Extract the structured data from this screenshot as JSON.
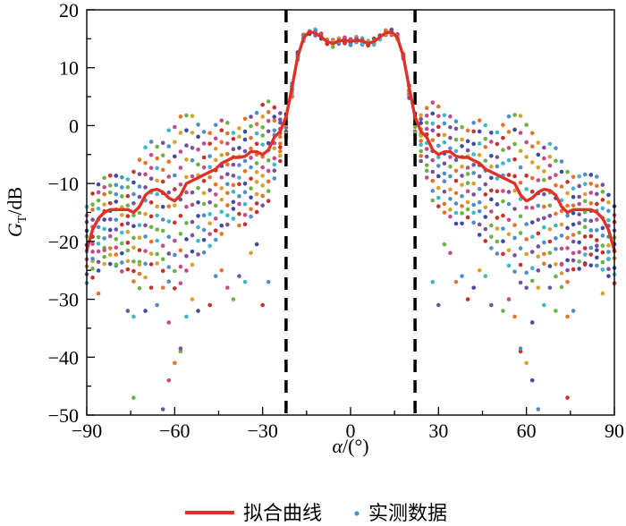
{
  "chart_data": {
    "type": "scatter",
    "xlabel_var": "α",
    "xlabel_unit": "/(°)",
    "ylabel_var": "G",
    "ylabel_sub": "T",
    "ylabel_unit": "/dB",
    "xlim": [
      -90,
      90
    ],
    "ylim": [
      -50,
      20
    ],
    "x_ticks": [
      -90,
      -60,
      -30,
      0,
      30,
      60,
      90
    ],
    "x_tick_labels": [
      "−90",
      "−60",
      "−30",
      "0",
      "30",
      "60",
      "90"
    ],
    "y_ticks": [
      -50,
      -40,
      -30,
      -20,
      -10,
      0,
      10,
      20
    ],
    "y_tick_labels": [
      "−50",
      "−40",
      "−30",
      "−20",
      "−10",
      "0",
      "10",
      "20"
    ],
    "vlines": [
      -22,
      22
    ],
    "legend_position": "bottom-center",
    "series": [
      {
        "name": "拟合曲线",
        "kind": "line",
        "color": "#e03127",
        "x": [
          -90,
          -88,
          -86,
          -84,
          -82,
          -80,
          -78,
          -76,
          -74,
          -72,
          -70,
          -68,
          -66,
          -64,
          -62,
          -60,
          -58,
          -56,
          -54,
          -52,
          -50,
          -48,
          -46,
          -44,
          -42,
          -40,
          -38,
          -36,
          -34,
          -32,
          -30,
          -28,
          -26,
          -24,
          -22,
          -20,
          -18,
          -16,
          -14,
          -12,
          -10,
          -8,
          -6,
          -4,
          -2,
          0,
          2,
          4,
          6,
          8,
          10,
          12,
          14,
          16,
          18,
          20,
          22,
          24,
          26,
          28,
          30,
          32,
          34,
          36,
          38,
          40,
          42,
          44,
          46,
          48,
          50,
          52,
          54,
          56,
          58,
          60,
          62,
          64,
          66,
          68,
          70,
          72,
          74,
          76,
          78,
          80,
          82,
          84,
          86,
          88,
          90
        ],
        "y": [
          -21.5,
          -18,
          -16,
          -15,
          -14.5,
          -14.5,
          -14.5,
          -14.5,
          -15,
          -14,
          -12,
          -11.2,
          -11,
          -11.5,
          -12.5,
          -13,
          -12,
          -10,
          -9.5,
          -9,
          -8.5,
          -8,
          -7.5,
          -6.5,
          -6,
          -5.5,
          -5.5,
          -5.3,
          -4.5,
          -4.5,
          -5,
          -4.2,
          -2,
          -1,
          1.5,
          6.5,
          12,
          15.2,
          16.2,
          16,
          15.3,
          14.5,
          14.2,
          14.6,
          14.8,
          14.5,
          14.8,
          14.6,
          14.2,
          14.5,
          15.3,
          16,
          16.2,
          15.2,
          12,
          6.5,
          1.5,
          -1,
          -2,
          -4.2,
          -5,
          -4.5,
          -4.5,
          -5.3,
          -5.5,
          -5.5,
          -6,
          -6.5,
          -7.5,
          -8,
          -8.5,
          -9,
          -9.5,
          -10,
          -12,
          -13,
          -12.5,
          -11.5,
          -11,
          -11.2,
          -12,
          -14,
          -15,
          -14.5,
          -14.5,
          -14.5,
          -14.5,
          -15,
          -16,
          -18,
          -21.5
        ]
      },
      {
        "name": "实测数据",
        "kind": "scatter",
        "colors": [
          "#4e8fc9",
          "#e6732a",
          "#c54a8c",
          "#6bb344",
          "#7a4fa0",
          "#3fb7c9",
          "#d9a12b",
          "#3e4aa3",
          "#c9302c"
        ],
        "x": [
          -90,
          -88,
          -86,
          -84,
          -82,
          -80,
          -78,
          -76,
          -74,
          -72,
          -70,
          -68,
          -66,
          -64,
          -62,
          -60,
          -58,
          -56,
          -54,
          -52,
          -50,
          -48,
          -46,
          -44,
          -42,
          -40,
          -38,
          -36,
          -34,
          -32,
          -30,
          -28,
          -26,
          -24,
          -22,
          -20,
          -18,
          -16,
          -14,
          -12,
          -10,
          -8,
          -6,
          -4,
          -2,
          0,
          2,
          4,
          6,
          8,
          10,
          12,
          14,
          16,
          18,
          20,
          22,
          24,
          26,
          28,
          30,
          32,
          34,
          36,
          38,
          40,
          42,
          44,
          46,
          48,
          50,
          52,
          54,
          56,
          58,
          60,
          62,
          64,
          66,
          68,
          70,
          72,
          74,
          76,
          78,
          80,
          82,
          84,
          86,
          88,
          90
        ],
        "y_upper": [
          -14,
          -12,
          -10,
          -9,
          -8.5,
          -8.5,
          -9,
          -9,
          -8,
          -6,
          -4,
          -3,
          -3.5,
          -3,
          -1,
          0,
          1.5,
          2,
          1.5,
          0,
          -1,
          -1,
          0,
          1,
          0.5,
          -1,
          -0.5,
          1,
          1.5,
          2,
          3.5,
          4,
          3,
          2,
          2,
          7,
          12.5,
          15.8,
          16.5,
          16.4,
          15.7,
          14.9,
          14.5,
          14.9,
          15.1,
          14.8,
          15.1,
          14.9,
          14.5,
          14.9,
          15.7,
          16.4,
          16.5,
          15.8,
          12.5,
          7,
          2,
          2,
          3,
          4,
          3.5,
          2,
          1.5,
          1,
          -0.5,
          -1,
          0.5,
          1,
          0,
          -1,
          -1,
          0,
          1.5,
          2,
          1.5,
          0,
          -1,
          -3,
          -3.5,
          -3,
          -4,
          -6,
          -8,
          -9,
          -9,
          -8.5,
          -8.5,
          -9,
          -10,
          -12,
          -14
        ],
        "y_lower": [
          -27,
          -26,
          -25,
          -24,
          -24,
          -24,
          -25,
          -25,
          -27,
          -28,
          -26,
          -24,
          -24,
          -25,
          -27,
          -28,
          -27,
          -25,
          -24,
          -22,
          -22,
          -21,
          -20,
          -19,
          -17,
          -16,
          -17,
          -17,
          -16,
          -15,
          -14,
          -13,
          -9,
          -6,
          -2,
          5,
          11.5,
          14.8,
          15.8,
          15.6,
          14.9,
          14.1,
          13.8,
          14.2,
          14.4,
          14.1,
          14.4,
          14.2,
          13.8,
          14.1,
          14.9,
          15.6,
          15.8,
          14.8,
          11.5,
          5,
          -2,
          -6,
          -9,
          -13,
          -14,
          -15,
          -16,
          -17,
          -17,
          -16,
          -17,
          -19,
          -20,
          -21,
          -22,
          -22,
          -24,
          -25,
          -27,
          -28,
          -27,
          -25,
          -24,
          -24,
          -26,
          -28,
          -27,
          -25,
          -25,
          -24,
          -24,
          -24,
          -25,
          -26,
          -27
        ],
        "outliers": [
          [
            -88,
            -23
          ],
          [
            -86,
            -29
          ],
          [
            -84,
            -21.5
          ],
          [
            -80,
            -24
          ],
          [
            -76,
            -32
          ],
          [
            -74,
            -33
          ],
          [
            -72,
            -24
          ],
          [
            -70,
            -32
          ],
          [
            -68,
            -28
          ],
          [
            -66,
            -31
          ],
          [
            -64,
            -28
          ],
          [
            -62,
            -34
          ],
          [
            -58,
            -39
          ],
          [
            -58,
            -38.5
          ],
          [
            -56,
            -33
          ],
          [
            -54,
            -30
          ],
          [
            -52,
            -32
          ],
          [
            -48,
            -31
          ],
          [
            -46,
            -26
          ],
          [
            -44,
            -25
          ],
          [
            -42,
            -28
          ],
          [
            -40,
            -30
          ],
          [
            -38,
            -26
          ],
          [
            -36,
            -27
          ],
          [
            -34,
            -22
          ],
          [
            -32,
            -20.5
          ],
          [
            -30,
            -31
          ],
          [
            -28,
            -27
          ],
          [
            -60,
            -41
          ],
          [
            -62,
            -44
          ],
          [
            -74,
            -47
          ],
          [
            -64,
            -49
          ],
          [
            88,
            -23
          ],
          [
            86,
            -29
          ],
          [
            84,
            -21.5
          ],
          [
            80,
            -24
          ],
          [
            76,
            -32
          ],
          [
            74,
            -33
          ],
          [
            72,
            -24
          ],
          [
            70,
            -32
          ],
          [
            68,
            -28
          ],
          [
            66,
            -31
          ],
          [
            64,
            -28
          ],
          [
            62,
            -34
          ],
          [
            58,
            -39
          ],
          [
            58,
            -38.5
          ],
          [
            56,
            -33
          ],
          [
            54,
            -30
          ],
          [
            52,
            -32
          ],
          [
            48,
            -31
          ],
          [
            46,
            -26
          ],
          [
            44,
            -25
          ],
          [
            42,
            -28
          ],
          [
            40,
            -30
          ],
          [
            38,
            -26
          ],
          [
            36,
            -27
          ],
          [
            34,
            -22
          ],
          [
            32,
            -20.5
          ],
          [
            30,
            -31
          ],
          [
            28,
            -27
          ],
          [
            60,
            -41
          ],
          [
            62,
            -44
          ],
          [
            74,
            -47
          ],
          [
            64,
            -49
          ]
        ]
      }
    ]
  }
}
